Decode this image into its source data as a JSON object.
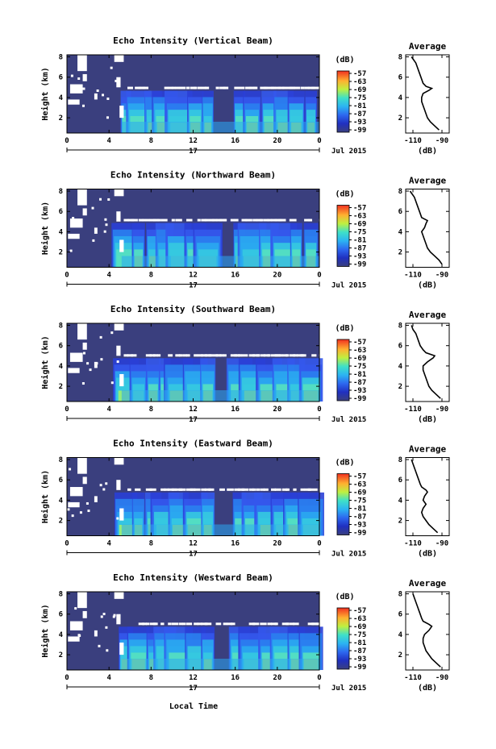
{
  "figure": {
    "xlabel": "Local Time"
  },
  "chart_data": [
    {
      "type": "heatmap",
      "title": "Echo Intensity (Vertical Beam)",
      "ylabel": "Height (km)",
      "x_ticks": [
        "0",
        "4",
        "8",
        "12",
        "16",
        "20",
        "0"
      ],
      "date_label": "17",
      "date_suffix": "Jul 2015",
      "y_ticks": [
        "2",
        "4",
        "6",
        "8"
      ],
      "xlim": [
        0,
        24
      ],
      "ylim": [
        0.5,
        8.2
      ],
      "colorbar": {
        "unit": "(dB)",
        "ticks": [
          "-57",
          "-63",
          "-69",
          "-75",
          "-81",
          "-87",
          "-93",
          "-99"
        ]
      },
      "layer_height_km": 4.9,
      "profile": {
        "title": "Average",
        "xlabel": "(dB)",
        "x_ticks": [
          "-110",
          "-90"
        ],
        "y_ticks": [
          "2",
          "4",
          "6",
          "8"
        ],
        "xlim": [
          -115,
          -85
        ],
        "ylim": [
          0.5,
          8.2
        ],
        "height_km": [
          0.8,
          1.2,
          1.6,
          2.0,
          2.4,
          2.8,
          3.2,
          3.6,
          4.0,
          4.4,
          4.7,
          4.9,
          5.1,
          5.4,
          5.8,
          6.2,
          6.6,
          7.0,
          7.4,
          7.8,
          8.0
        ],
        "value_db": [
          -92,
          -95,
          -98,
          -100,
          -101,
          -102,
          -103,
          -104,
          -104,
          -103,
          -99,
          -97,
          -101,
          -103,
          -104,
          -105,
          -106,
          -107,
          -108,
          -110,
          -111
        ]
      }
    },
    {
      "type": "heatmap",
      "title": "Echo Intensity (Northward Beam)",
      "ylabel": "Height (km)",
      "x_ticks": [
        "0",
        "4",
        "8",
        "12",
        "16",
        "20",
        "0"
      ],
      "date_label": "17",
      "date_suffix": "Jul 2015",
      "y_ticks": [
        "2",
        "4",
        "6",
        "8"
      ],
      "xlim": [
        0,
        24
      ],
      "ylim": [
        0.5,
        8.2
      ],
      "colorbar": {
        "unit": "(dB)",
        "ticks": [
          "-57",
          "-63",
          "-69",
          "-75",
          "-81",
          "-87",
          "-93",
          "-99"
        ]
      },
      "layer_height_km": 5.1,
      "profile": {
        "title": "Average",
        "xlabel": "(dB)",
        "x_ticks": [
          "-110",
          "-90"
        ],
        "y_ticks": [
          "2",
          "4",
          "6",
          "8"
        ],
        "xlim": [
          -115,
          -85
        ],
        "ylim": [
          0.5,
          8.2
        ],
        "height_km": [
          0.8,
          1.2,
          1.6,
          2.0,
          2.4,
          2.8,
          3.2,
          3.6,
          4.0,
          4.4,
          4.8,
          5.1,
          5.4,
          5.8,
          6.2,
          6.6,
          7.0,
          7.4,
          7.8,
          8.0
        ],
        "value_db": [
          -90,
          -92,
          -95,
          -98,
          -100,
          -101,
          -102,
          -103,
          -104,
          -102,
          -101,
          -100,
          -104,
          -105,
          -106,
          -107,
          -108,
          -109,
          -111,
          -112
        ]
      }
    },
    {
      "type": "heatmap",
      "title": "Echo Intensity (Southward Beam)",
      "ylabel": "Height (km)",
      "x_ticks": [
        "0",
        "4",
        "8",
        "12",
        "16",
        "20",
        "0"
      ],
      "date_label": "17",
      "date_suffix": "Jul 2015",
      "y_ticks": [
        "2",
        "4",
        "6",
        "8"
      ],
      "xlim": [
        0,
        24
      ],
      "ylim": [
        0.5,
        8.2
      ],
      "colorbar": {
        "unit": "(dB)",
        "ticks": [
          "-57",
          "-63",
          "-69",
          "-75",
          "-81",
          "-87",
          "-93",
          "-99"
        ]
      },
      "layer_height_km": 5.0,
      "profile": {
        "title": "Average",
        "xlabel": "(dB)",
        "x_ticks": [
          "-110",
          "-90"
        ],
        "y_ticks": [
          "2",
          "4",
          "6",
          "8"
        ],
        "xlim": [
          -115,
          -85
        ],
        "ylim": [
          0.5,
          8.2
        ],
        "height_km": [
          0.8,
          1.2,
          1.6,
          2.0,
          2.4,
          2.8,
          3.2,
          3.6,
          4.0,
          4.4,
          4.8,
          5.0,
          5.3,
          5.6,
          6.0,
          6.4,
          6.8,
          7.2,
          7.6,
          8.0
        ],
        "value_db": [
          -91,
          -94,
          -97,
          -99,
          -100,
          -101,
          -102,
          -103,
          -103,
          -100,
          -96,
          -95,
          -101,
          -103,
          -105,
          -106,
          -107,
          -108,
          -110,
          -111
        ]
      }
    },
    {
      "type": "heatmap",
      "title": "Echo Intensity (Eastward Beam)",
      "ylabel": "Height (km)",
      "x_ticks": [
        "0",
        "4",
        "8",
        "12",
        "16",
        "20",
        "0"
      ],
      "date_label": "17",
      "date_suffix": "Jul 2015",
      "y_ticks": [
        "2",
        "4",
        "6",
        "8"
      ],
      "xlim": [
        0,
        24
      ],
      "ylim": [
        0.5,
        8.2
      ],
      "colorbar": {
        "unit": "(dB)",
        "ticks": [
          "-57",
          "-63",
          "-69",
          "-75",
          "-81",
          "-87",
          "-93",
          "-99"
        ]
      },
      "layer_height_km": 5.0,
      "profile": {
        "title": "Average",
        "xlabel": "(dB)",
        "x_ticks": [
          "-110",
          "-90"
        ],
        "y_ticks": [
          "2",
          "4",
          "6",
          "8"
        ],
        "xlim": [
          -115,
          -85
        ],
        "ylim": [
          0.5,
          8.2
        ],
        "height_km": [
          0.8,
          1.2,
          1.6,
          2.0,
          2.4,
          2.8,
          3.2,
          3.6,
          4.0,
          4.4,
          4.8,
          5.0,
          5.3,
          5.6,
          6.0,
          6.4,
          6.8,
          7.2,
          7.6,
          8.0
        ],
        "value_db": [
          -93,
          -96,
          -99,
          -101,
          -103,
          -104,
          -103,
          -101,
          -103,
          -102,
          -100,
          -101,
          -104,
          -105,
          -106,
          -107,
          -108,
          -109,
          -110,
          -111
        ]
      }
    },
    {
      "type": "heatmap",
      "title": "Echo Intensity (Westward Beam)",
      "ylabel": "Height (km)",
      "x_ticks": [
        "0",
        "4",
        "8",
        "12",
        "16",
        "20",
        "0"
      ],
      "date_label": "17",
      "date_suffix": "Jul 2015",
      "y_ticks": [
        "2",
        "4",
        "6",
        "8"
      ],
      "xlim": [
        0,
        24
      ],
      "ylim": [
        0.5,
        8.2
      ],
      "colorbar": {
        "unit": "(dB)",
        "ticks": [
          "-57",
          "-63",
          "-69",
          "-75",
          "-81",
          "-87",
          "-93",
          "-99"
        ]
      },
      "layer_height_km": 5.0,
      "profile": {
        "title": "Average",
        "xlabel": "(dB)",
        "x_ticks": [
          "-110",
          "-90"
        ],
        "y_ticks": [
          "2",
          "4",
          "6",
          "8"
        ],
        "xlim": [
          -115,
          -85
        ],
        "ylim": [
          0.5,
          8.2
        ],
        "height_km": [
          0.8,
          1.2,
          1.6,
          2.0,
          2.4,
          2.8,
          3.2,
          3.6,
          4.0,
          4.4,
          4.8,
          5.0,
          5.3,
          5.6,
          6.0,
          6.4,
          6.8,
          7.2,
          7.6,
          8.0
        ],
        "value_db": [
          -91,
          -94,
          -97,
          -99,
          -101,
          -102,
          -103,
          -103,
          -102,
          -99,
          -97,
          -99,
          -103,
          -104,
          -105,
          -106,
          -107,
          -108,
          -109,
          -110
        ]
      }
    }
  ]
}
